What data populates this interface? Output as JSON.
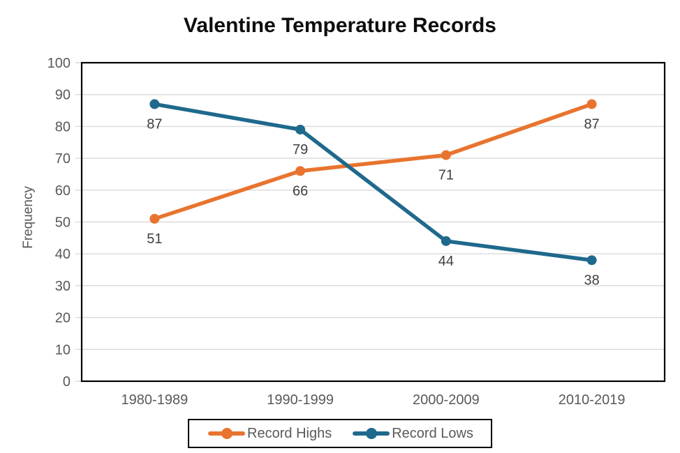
{
  "chart_data": {
    "type": "line",
    "title": "Valentine Temperature Records",
    "xlabel": "",
    "ylabel": "Frequency",
    "categories": [
      "1980-1989",
      "1990-1999",
      "2000-2009",
      "2010-2019"
    ],
    "series": [
      {
        "name": "Record Highs",
        "values": [
          51,
          66,
          71,
          87
        ],
        "color": "#E8742F"
      },
      {
        "name": "Record Lows",
        "values": [
          87,
          79,
          44,
          38
        ],
        "color": "#1F698C"
      }
    ],
    "ylim": [
      0,
      100
    ],
    "yticks": [
      0,
      10,
      20,
      30,
      40,
      50,
      60,
      70,
      80,
      90,
      100
    ],
    "grid": true,
    "data_labels": true,
    "data_label_position": "below",
    "legend_position": "bottom-center",
    "styles": {
      "grid_color": "#D9D9D9",
      "axis_text_color": "#595959",
      "data_label_color": "#404040",
      "plot_border_color": "#000000",
      "title_color": "#0D0D0D",
      "legend_border_color": "#000000",
      "legend_text_color": "#595959",
      "background_color": "#FFFFFF"
    }
  }
}
